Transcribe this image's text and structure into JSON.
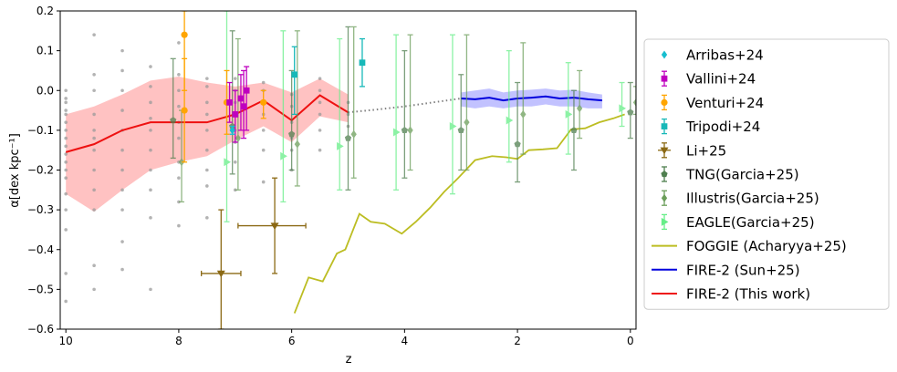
{
  "chart_data": {
    "type": "scatter",
    "xlabel": "z",
    "ylabel": "α[dex kpc⁻¹]",
    "xlim": [
      10.1,
      -0.1
    ],
    "ylim": [
      -0.6,
      0.2
    ],
    "x_reversed": true,
    "xticks": [
      10,
      8,
      6,
      4,
      2,
      0
    ],
    "yticks": [
      -0.6,
      -0.5,
      -0.4,
      -0.3,
      -0.2,
      -0.1,
      0.0,
      0.1,
      0.2
    ],
    "ytick_labels": [
      "−0.6",
      "−0.5",
      "−0.4",
      "−0.3",
      "−0.2",
      "−0.1",
      "0.0",
      "0.1",
      "0.2"
    ],
    "grid": false,
    "legend_position": "outside-right",
    "legend": [
      {
        "label": "Arribas+24",
        "color": "#17becf",
        "marker": "diamond"
      },
      {
        "label": "Vallini+24",
        "color": "#bf00bf",
        "marker": "square"
      },
      {
        "label": "Venturi+24",
        "color": "#ffa500",
        "marker": "circle"
      },
      {
        "label": "Tripodi+24",
        "color": "#17b8b8",
        "marker": "square"
      },
      {
        "label": "Li+25",
        "color": "#8b6914",
        "marker": "triangle-down"
      },
      {
        "label": "TNG(Garcia+25)",
        "color": "#4f7f4f",
        "marker": "pentagon"
      },
      {
        "label": "Illustris(Garcia+25)",
        "color": "#6b9e5a",
        "marker": "diamond"
      },
      {
        "label": "EAGLE(Garcia+25)",
        "color": "#66ee88",
        "marker": "triangle-right"
      },
      {
        "label": "FOGGIE (Acharyya+25)",
        "color": "#bcbd22",
        "marker": "line"
      },
      {
        "label": "FIRE-2 (Sun+25)",
        "color": "#0000dd",
        "marker": "line"
      },
      {
        "label": "FIRE-2 (This work)",
        "color": "#ee1111",
        "marker": "line"
      }
    ],
    "series": [
      {
        "name": "FIRE-2 (This work)",
        "color": "#ee1111",
        "x": [
          10,
          9.5,
          9,
          8.5,
          8,
          7.5,
          7,
          6.5,
          6,
          5.5,
          5
        ],
        "y": [
          -0.155,
          -0.135,
          -0.1,
          -0.08,
          -0.08,
          -0.08,
          -0.06,
          -0.025,
          -0.075,
          -0.012,
          -0.055
        ],
        "band_lo": [
          -0.26,
          -0.305,
          -0.25,
          -0.2,
          -0.18,
          -0.165,
          -0.125,
          -0.09,
          -0.13,
          -0.065,
          -0.08
        ],
        "band_hi": [
          -0.06,
          -0.04,
          -0.01,
          0.025,
          0.035,
          0.02,
          0.01,
          0.02,
          -0.005,
          0.03,
          -0.01
        ]
      },
      {
        "name": "FIRE-2 (Sun+25)",
        "color": "#0000dd",
        "x": [
          3,
          2.75,
          2.5,
          2.25,
          2,
          1.75,
          1.5,
          1.25,
          1,
          0.75,
          0.5
        ],
        "y": [
          -0.02,
          -0.022,
          -0.018,
          -0.025,
          -0.02,
          -0.018,
          -0.015,
          -0.02,
          -0.018,
          -0.022,
          -0.025
        ],
        "band_lo": [
          -0.04,
          -0.045,
          -0.04,
          -0.045,
          -0.04,
          -0.04,
          -0.035,
          -0.04,
          -0.04,
          -0.045,
          -0.045
        ],
        "band_hi": [
          -0.005,
          0.0,
          0.005,
          -0.005,
          0.0,
          0.002,
          0.005,
          0.0,
          0.002,
          -0.005,
          -0.01
        ]
      },
      {
        "name": "dotted connector",
        "color": "#808080",
        "x": [
          5,
          4.5,
          4,
          3.5,
          3
        ],
        "y": [
          -0.055,
          -0.048,
          -0.04,
          -0.03,
          -0.02
        ]
      },
      {
        "name": "FOGGIE (Acharyya+25)",
        "color": "#bcbd22",
        "x": [
          5.95,
          5.7,
          5.45,
          5.2,
          5.05,
          4.8,
          4.6,
          4.35,
          4.05,
          3.8,
          3.55,
          3.3,
          3.05,
          2.75,
          2.45,
          2.2,
          2.0,
          1.8,
          1.55,
          1.3,
          1.05,
          0.8,
          0.55,
          0.3,
          0.1
        ],
        "y": [
          -0.56,
          -0.47,
          -0.48,
          -0.41,
          -0.4,
          -0.31,
          -0.33,
          -0.335,
          -0.36,
          -0.33,
          -0.295,
          -0.255,
          -0.22,
          -0.175,
          -0.165,
          -0.168,
          -0.172,
          -0.15,
          -0.148,
          -0.145,
          -0.098,
          -0.095,
          -0.08,
          -0.07,
          -0.06
        ]
      },
      {
        "name": "Arribas+24",
        "color": "#17becf",
        "marker": "diamond",
        "points": [
          {
            "x": 7.05,
            "y": -0.1,
            "ylo": -0.11,
            "yhi": -0.09
          }
        ]
      },
      {
        "name": "Vallini+24",
        "color": "#bf00bf",
        "marker": "square",
        "points": [
          {
            "x": 7.0,
            "y": -0.06,
            "ylo": -0.13,
            "yhi": 0.0
          },
          {
            "x": 6.9,
            "y": -0.02,
            "ylo": -0.1,
            "yhi": 0.04
          },
          {
            "x": 6.85,
            "y": -0.04,
            "ylo": -0.12,
            "yhi": 0.05
          },
          {
            "x": 6.8,
            "y": 0.0,
            "ylo": -0.1,
            "yhi": 0.06
          },
          {
            "x": 7.1,
            "y": -0.03,
            "ylo": -0.08,
            "yhi": 0.02
          }
        ]
      },
      {
        "name": "Venturi+24",
        "color": "#ffa500",
        "marker": "circle",
        "points": [
          {
            "x": 7.9,
            "y": 0.14,
            "ylo": 0.0,
            "yhi": 0.2
          },
          {
            "x": 7.9,
            "y": -0.05,
            "ylo": -0.18,
            "yhi": 0.08
          },
          {
            "x": 7.15,
            "y": -0.03,
            "ylo": -0.11,
            "yhi": 0.05
          },
          {
            "x": 6.5,
            "y": -0.03,
            "ylo": -0.07,
            "yhi": 0.0
          }
        ]
      },
      {
        "name": "Tripodi+24",
        "color": "#17b8b8",
        "marker": "square",
        "points": [
          {
            "x": 4.75,
            "y": 0.07,
            "ylo": 0.01,
            "yhi": 0.13
          },
          {
            "x": 5.95,
            "y": 0.04,
            "ylo": -0.06,
            "yhi": 0.11
          }
        ]
      },
      {
        "name": "Li+25",
        "color": "#8b6914",
        "marker": "triangle-down",
        "points": [
          {
            "x": 7.25,
            "y": -0.46,
            "ylo": -0.6,
            "yhi": -0.3,
            "xlo": 7.6,
            "xhi": 6.9
          },
          {
            "x": 6.3,
            "y": -0.34,
            "ylo": -0.46,
            "yhi": -0.22,
            "xlo": 6.95,
            "xhi": 5.75
          }
        ]
      },
      {
        "name": "TNG(Garcia+25)",
        "color": "#4f7f4f",
        "marker": "pentagon",
        "points": [
          {
            "x": 8.1,
            "y": -0.075,
            "ylo": -0.17,
            "yhi": 0.08
          },
          {
            "x": 7.05,
            "y": -0.09,
            "ylo": -0.21,
            "yhi": 0.15
          },
          {
            "x": 6.0,
            "y": -0.11,
            "ylo": -0.2,
            "yhi": 0.05
          },
          {
            "x": 5.0,
            "y": -0.12,
            "ylo": -0.25,
            "yhi": 0.16
          },
          {
            "x": 4.0,
            "y": -0.1,
            "ylo": -0.22,
            "yhi": 0.1
          },
          {
            "x": 3.0,
            "y": -0.1,
            "ylo": -0.2,
            "yhi": 0.04
          },
          {
            "x": 2.0,
            "y": -0.135,
            "ylo": -0.23,
            "yhi": 0.02
          },
          {
            "x": 1.0,
            "y": -0.1,
            "ylo": -0.2,
            "yhi": 0.0
          },
          {
            "x": 0.0,
            "y": -0.055,
            "ylo": -0.12,
            "yhi": 0.02
          }
        ]
      },
      {
        "name": "Illustris(Garcia+25)",
        "color": "#6b9e5a",
        "marker": "diamond",
        "points": [
          {
            "x": 7.95,
            "y": -0.18,
            "ylo": -0.28,
            "yhi": -0.05
          },
          {
            "x": 6.95,
            "y": -0.12,
            "ylo": -0.25,
            "yhi": 0.13
          },
          {
            "x": 5.9,
            "y": -0.135,
            "ylo": -0.24,
            "yhi": 0.15
          },
          {
            "x": 4.9,
            "y": -0.11,
            "ylo": -0.22,
            "yhi": 0.16
          },
          {
            "x": 3.9,
            "y": -0.1,
            "ylo": -0.2,
            "yhi": 0.14
          },
          {
            "x": 2.9,
            "y": -0.08,
            "ylo": -0.2,
            "yhi": 0.14
          },
          {
            "x": 1.9,
            "y": -0.06,
            "ylo": -0.16,
            "yhi": 0.12
          },
          {
            "x": 0.9,
            "y": -0.045,
            "ylo": -0.12,
            "yhi": 0.05
          },
          {
            "x": -0.1,
            "y": -0.03,
            "ylo": -0.06,
            "yhi": 0.01
          }
        ]
      },
      {
        "name": "EAGLE(Garcia+25)",
        "color": "#66ee88",
        "marker": "triangle-right",
        "points": [
          {
            "x": 7.15,
            "y": -0.18,
            "ylo": -0.33,
            "yhi": 0.2
          },
          {
            "x": 6.15,
            "y": -0.165,
            "ylo": -0.28,
            "yhi": 0.15
          },
          {
            "x": 5.15,
            "y": -0.14,
            "ylo": -0.25,
            "yhi": 0.13
          },
          {
            "x": 4.15,
            "y": -0.105,
            "ylo": -0.25,
            "yhi": 0.14
          },
          {
            "x": 3.15,
            "y": -0.09,
            "ylo": -0.26,
            "yhi": 0.14
          },
          {
            "x": 2.15,
            "y": -0.075,
            "ylo": -0.18,
            "yhi": 0.1
          },
          {
            "x": 1.1,
            "y": -0.06,
            "ylo": -0.16,
            "yhi": 0.07
          },
          {
            "x": 0.15,
            "y": -0.045,
            "ylo": -0.09,
            "yhi": 0.02
          }
        ]
      },
      {
        "name": "FIRE-2 individual galaxies",
        "color": "#999999",
        "marker": "dot",
        "x_values": [
          10,
          9.5,
          9,
          8.5,
          8,
          7.5,
          7,
          6.5,
          6,
          5.5,
          5
        ],
        "y_samples": [
          [
            -0.53,
            -0.46,
            -0.35,
            -0.3,
            -0.26,
            -0.22,
            -0.2,
            -0.18,
            -0.16,
            -0.14,
            -0.12,
            -0.1,
            -0.08,
            -0.06,
            -0.05,
            -0.03,
            -0.02,
            0.0
          ],
          [
            -0.5,
            -0.44,
            -0.3,
            -0.25,
            -0.2,
            -0.15,
            -0.12,
            -0.1,
            -0.06,
            0.0,
            0.04,
            0.14
          ],
          [
            -0.45,
            -0.38,
            -0.3,
            -0.25,
            -0.2,
            -0.15,
            -0.1,
            -0.05,
            0.0,
            0.05,
            0.1
          ],
          [
            -0.5,
            -0.32,
            -0.25,
            -0.2,
            -0.15,
            -0.1,
            -0.07,
            -0.03,
            0.01,
            0.06
          ],
          [
            -0.34,
            -0.28,
            -0.22,
            -0.18,
            -0.12,
            -0.08,
            -0.04,
            0.0,
            0.04,
            0.12
          ],
          [
            -0.32,
            -0.24,
            -0.2,
            -0.15,
            -0.1,
            -0.06,
            -0.03,
            0.01,
            0.03
          ],
          [
            -0.25,
            -0.18,
            -0.13,
            -0.1,
            -0.06,
            -0.03,
            0.0,
            0.03
          ],
          [
            -0.23,
            -0.15,
            -0.1,
            -0.06,
            -0.03,
            0.0,
            0.02
          ],
          [
            -0.2,
            -0.15,
            -0.12,
            -0.08,
            -0.04,
            -0.01
          ],
          [
            -0.15,
            -0.1,
            -0.06,
            -0.03,
            0.0,
            0.03
          ],
          [
            -0.09,
            -0.06,
            -0.03
          ]
        ]
      }
    ]
  }
}
